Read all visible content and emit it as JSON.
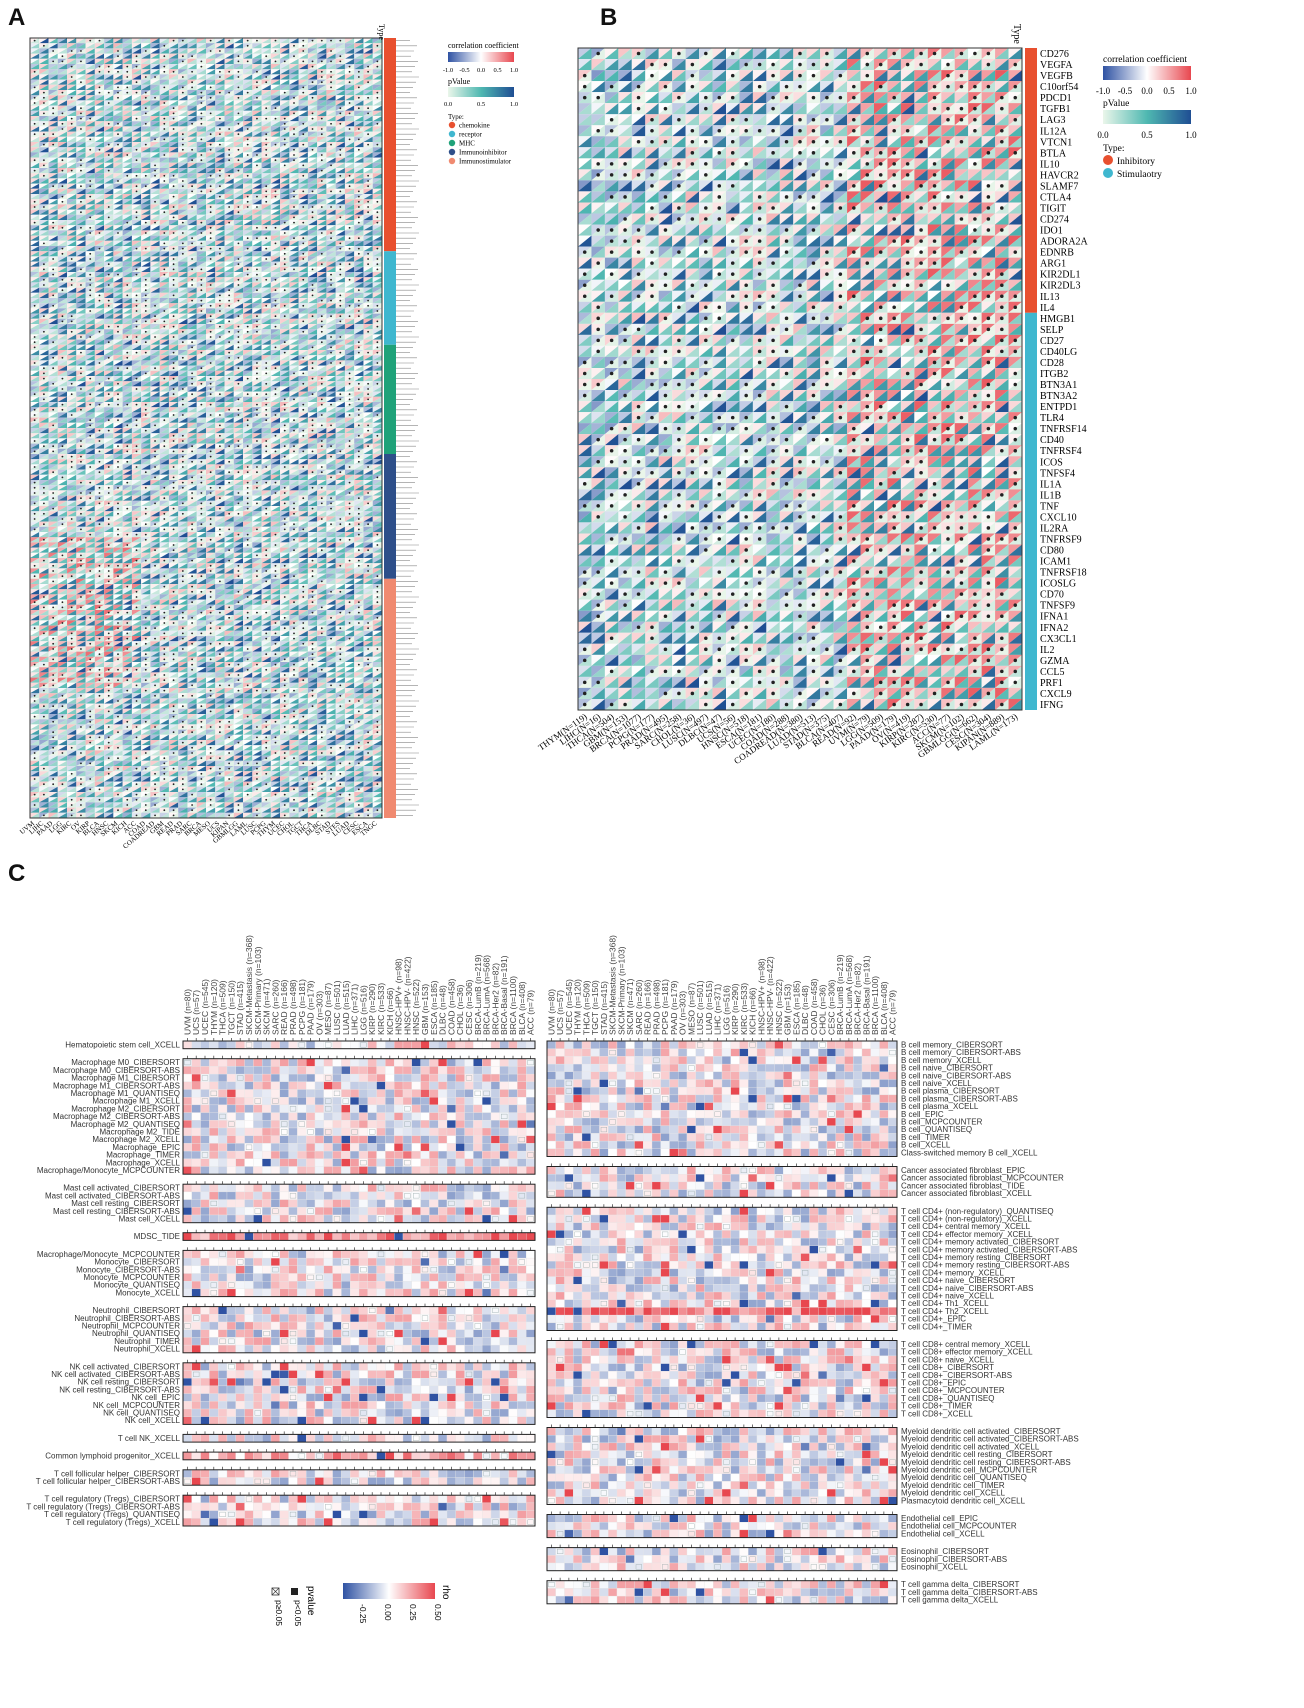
{
  "panels": {
    "a": {
      "letter": "A"
    },
    "b": {
      "letter": "B"
    },
    "c": {
      "letter": "C"
    }
  },
  "colors": {
    "negative": "#2f52a3",
    "positive": "#e8474f",
    "pvalue_low": "#eaf6ea",
    "pvalue_mid": "#4fb8b1",
    "pvalue_high": "#1f4e93",
    "chemokine": "#e8502f",
    "receptor": "#3fb7cf",
    "mhc": "#1fa279",
    "immunoinhibitor": "#2e4f8a",
    "immunostimulator": "#f08a70",
    "inhibitory": "#e8502f",
    "stimulaotry": "#3fb7cf"
  },
  "chart_data": [
    {
      "panel": "A",
      "type": "heatmap",
      "type_annotation_title": "Type",
      "legend": {
        "corr_title": "correlation coefficient",
        "corr_ticks": [
          "-1.0",
          "-0.5",
          "0.0",
          "0.5",
          "1.0"
        ],
        "p_title": "pValue",
        "p_ticks": [
          "0.0",
          "0.5",
          "1.0"
        ],
        "type_title": "Type",
        "types": [
          "chemokine",
          "receptor",
          "MHC",
          "Immunoinhibitor",
          "Immunostimulator"
        ]
      },
      "x_categories": [
        "UVM",
        "LIHC",
        "PAAD",
        "LGG",
        "KIRC",
        "OV",
        "KIRP",
        "BLCA",
        "HNSC",
        "SKCM",
        "KICH",
        "ACC",
        "COAD",
        "COADREAD",
        "GBM",
        "READ",
        "PRAD",
        "SARC",
        "BRCA",
        "MESO",
        "UCS",
        "KIPAN",
        "GBMLGG",
        "LAML",
        "LUSC",
        "PCPG",
        "THYM",
        "UCEC",
        "CHOL",
        "TGCT",
        "THCA",
        "DLBC",
        "STAD",
        "STES",
        "LUAD",
        "CESC",
        "ESCA",
        "TNGC"
      ],
      "y_groups": [
        {
          "type": "chemokine",
          "rows": 41
        },
        {
          "type": "receptor",
          "rows": 18
        },
        {
          "type": "MHC",
          "rows": 21
        },
        {
          "type": "Immunoinhibitor",
          "rows": 24
        },
        {
          "type": "Immunostimulator",
          "rows": 46
        }
      ]
    },
    {
      "panel": "B",
      "type": "heatmap",
      "type_annotation_title": "Type",
      "legend": {
        "corr_title": "correlation coefficient",
        "corr_ticks": [
          "-1.0",
          "-0.5",
          "0.0",
          "0.5",
          "1.0"
        ],
        "p_title": "pValue",
        "p_ticks": [
          "0.0",
          "0.5",
          "1.0"
        ],
        "type_title": "Type:",
        "types": [
          "Inhibitory",
          "Stimulaotry"
        ]
      },
      "x_categories": [
        "THYM(N=119)",
        "LIHC(N=16)",
        "THCA(N=504)",
        "GBM(N=153)",
        "BRCA(N=1077)",
        "PCPG(N=177)",
        "PRAD(N=495)",
        "SARC(N=258)",
        "CHOL(N=36)",
        "LUSC(N=497)",
        "DLBC(N=47)",
        "UCS(N=56)",
        "HNSC(N=518)",
        "ESCA(N=181)",
        "UCEC(N=180)",
        "COAD(N=288)",
        "COADREAD(N=380)",
        "LUAD(N=513)",
        "STAD(N=375)",
        "BLCA(N=407)",
        "READ(N=92)",
        "UVM(N=79)",
        "LGG(N=509)",
        "PAAD(N=179)",
        "OV(N=419)",
        "KIRP(N=287)",
        "KIRC(N=530)",
        "ACC(N=77)",
        "SKCM(N=102)",
        "GBMLGG(N=662)",
        "CESC(N=304)",
        "KIPAN(N=889)",
        "LAML(N=173)"
      ],
      "y_categories": [
        "CD276",
        "VEGFA",
        "VEGFB",
        "C10orf54",
        "PDCD1",
        "TGFB1",
        "LAG3",
        "IL12A",
        "VTCN1",
        "BTLA",
        "IL10",
        "HAVCR2",
        "SLAMF7",
        "CTLA4",
        "TIGIT",
        "CD274",
        "IDO1",
        "ADORA2A",
        "EDNRB",
        "ARG1",
        "KIR2DL1",
        "KIR2DL3",
        "IL13",
        "IL4",
        "HMGB1",
        "SELP",
        "CD27",
        "CD40LG",
        "CD28",
        "ITGB2",
        "BTN3A1",
        "BTN3A2",
        "ENTPD1",
        "TLR4",
        "TNFRSF14",
        "CD40",
        "TNFRSF4",
        "ICOS",
        "TNFSF4",
        "IL1A",
        "IL1B",
        "TNF",
        "CXCL10",
        "IL2RA",
        "TNFRSF9",
        "CD80",
        "ICAM1",
        "TNFRSF18",
        "ICOSLG",
        "CD70",
        "TNFSF9",
        "IFNA1",
        "IFNA2",
        "CX3CL1",
        "IL2",
        "GZMA",
        "CCL5",
        "PRF1",
        "CXCL9",
        "IFNG"
      ],
      "y_types": {
        "Inhibitory": 24,
        "Stimulaotry": 36
      }
    },
    {
      "panel": "C",
      "type": "heatmap",
      "x_categories": [
        "ACC (n=79)",
        "BLCA (n=408)",
        "BRCA (n=1100)",
        "BRCA-Basal (n=191)",
        "BRCA-Her2 (n=82)",
        "BRCA-LumA (n=568)",
        "BRCA-LumB (n=219)",
        "CESC (n=306)",
        "CHOL (n=36)",
        "COAD (n=458)",
        "DLBC (n=48)",
        "ESCA (n=185)",
        "GBM (n=153)",
        "HNSC (n=522)",
        "HNSC-HPV- (n=422)",
        "HNSC-HPV+ (n=98)",
        "KICH (n=66)",
        "KIRC (n=533)",
        "KIRP (n=290)",
        "LGG (n=516)",
        "LIHC (n=371)",
        "LUAD (n=515)",
        "LUSC (n=501)",
        "MESO (n=87)",
        "OV (n=303)",
        "PAAD (n=179)",
        "PCPG (n=181)",
        "PRAD (n=498)",
        "READ (n=166)",
        "SARC (n=260)",
        "SKCM (n=471)",
        "SKCM-Primary (n=103)",
        "SKCM-Metastasis (n=368)",
        "STAD (n=415)",
        "TGCT (n=150)",
        "THCA (n=509)",
        "THYM (n=120)",
        "UCEC (n=545)",
        "UCS (n=57)",
        "UVM (n=80)"
      ],
      "left_groups": [
        [
          "Hematopoietic stem cell_XCELL"
        ],
        [
          "Macrophage M0_CIBERSORT",
          "Macrophage M0_CIBERSORT-ABS",
          "Macrophage M1_CIBERSORT",
          "Macrophage M1_CIBERSORT-ABS",
          "Macrophage M1_QUANTISEQ",
          "Macrophage M1_XCELL",
          "Macrophage M2_CIBERSORT",
          "Macrophage M2_CIBERSORT-ABS",
          "Macrophage M2_QUANTISEQ",
          "Macrophage M2_TIDE",
          "Macrophage M2_XCELL",
          "Macrophage_EPIC",
          "Macrophage_TIMER",
          "Macrophage_XCELL",
          "Macrophage/Monocyte_MCPCOUNTER"
        ],
        [
          "Mast cell activated_CIBERSORT",
          "Mast cell activated_CIBERSORT-ABS",
          "Mast cell resting_CIBERSORT",
          "Mast cell resting_CIBERSORT-ABS",
          "Mast cell_XCELL"
        ],
        [
          "MDSC_TIDE"
        ],
        [
          "Macrophage/Monocyte_MCPCOUNTER",
          "Monocyte_CIBERSORT",
          "Monocyte_CIBERSORT-ABS",
          "Monocyte_MCPCOUNTER",
          "Monocyte_QUANTISEQ",
          "Monocyte_XCELL"
        ],
        [
          "Neutrophil_CIBERSORT",
          "Neutrophil_CIBERSORT-ABS",
          "Neutrophil_MCPCOUNTER",
          "Neutrophil_QUANTISEQ",
          "Neutrophil_TIMER",
          "Neutrophil_XCELL"
        ],
        [
          "NK cell activated_CIBERSORT",
          "NK cell activated_CIBERSORT-ABS",
          "NK cell resting_CIBERSORT",
          "NK cell resting_CIBERSORT-ABS",
          "NK cell_EPIC",
          "NK cell_MCPCOUNTER",
          "NK cell_QUANTISEQ",
          "NK cell_XCELL"
        ],
        [
          "T cell NK_XCELL"
        ],
        [
          "Common lymphoid progenitor_XCELL"
        ],
        [
          "T cell follicular helper_CIBERSORT",
          "T cell follicular helper_CIBERSORT-ABS"
        ],
        [
          "T cell regulatory (Tregs)_CIBERSORT",
          "T cell regulatory (Tregs)_CIBERSORT-ABS",
          "T cell regulatory (Tregs)_QUANTISEQ",
          "T cell regulatory (Tregs)_XCELL"
        ]
      ],
      "right_groups": [
        [
          "B cell memory_CIBERSORT",
          "B cell memory_CIBERSORT-ABS",
          "B cell memory_XCELL",
          "B cell naive_CIBERSORT",
          "B cell naive_CIBERSORT-ABS",
          "B cell naive_XCELL",
          "B cell plasma_CIBERSORT",
          "B cell plasma_CIBERSORT-ABS",
          "B cell plasma_XCELL",
          "B cell_EPIC",
          "B cell_MCPCOUNTER",
          "B cell_QUANTISEQ",
          "B cell_TIMER",
          "B cell_XCELL",
          "Class-switched memory B cell_XCELL"
        ],
        [
          "Cancer associated fibroblast_EPIC",
          "Cancer associated fibroblast_MCPCOUNTER",
          "Cancer associated fibroblast_TIDE",
          "Cancer associated fibroblast_XCELL"
        ],
        [
          "T cell CD4+ (non-regulatory)_QUANTISEQ",
          "T cell CD4+ (non-regulatory)_XCELL",
          "T cell CD4+ central memory_XCELL",
          "T cell CD4+ effector memory_XCELL",
          "T cell CD4+ memory activated_CIBERSORT",
          "T cell CD4+ memory activated_CIBERSORT-ABS",
          "T cell CD4+ memory resting_CIBERSORT",
          "T cell CD4+ memory resting_CIBERSORT-ABS",
          "T cell CD4+ memory_XCELL",
          "T cell CD4+ naive_CIBERSORT",
          "T cell CD4+ naive_CIBERSORT-ABS",
          "T cell CD4+ naive_XCELL",
          "T cell CD4+ Th1_XCELL",
          "T cell CD4+ Th2_XCELL",
          "T cell CD4+_EPIC",
          "T cell CD4+_TIMER"
        ],
        [
          "T cell CD8+ central memory_XCELL",
          "T cell CD8+ effector memory_XCELL",
          "T cell CD8+ naive_XCELL",
          "T cell CD8+_CIBERSORT",
          "T cell CD8+_CIBERSORT-ABS",
          "T cell CD8+_EPIC",
          "T cell CD8+_MCPCOUNTER",
          "T cell CD8+_QUANTISEQ",
          "T cell CD8+_TIMER",
          "T cell CD8+_XCELL"
        ],
        [
          "Myeloid dendritic cell activated_CIBERSORT",
          "Myeloid dendritic cell activated_CIBERSORT-ABS",
          "Myeloid dendritic cell activated_XCELL",
          "Myeloid dendritic cell resting_CIBERSORT",
          "Myeloid dendritic cell resting_CIBERSORT-ABS",
          "Myeloid dendritic cell_MCPCOUNTER",
          "Myeloid dendritic cell_QUANTISEQ",
          "Myeloid dendritic cell_TIMER",
          "Myeloid dendritic cell_XCELL",
          "Plasmacytoid dendritic cell_XCELL"
        ],
        [
          "Endothelial cell_EPIC",
          "Endothelial cell_MCPCOUNTER",
          "Endothelial cell_XCELL"
        ],
        [
          "Eosinophil_CIBERSORT",
          "Eosinophil_CIBERSORT-ABS",
          "Eosinophil_XCELL"
        ],
        [
          "T cell gamma delta_CIBERSORT",
          "T cell gamma delta_CIBERSORT-ABS",
          "T cell gamma delta_XCELL"
        ]
      ],
      "legend": {
        "pvalue_title": "pvalue",
        "pvalue_items": [
          "p<0.05",
          "p≥0.05"
        ],
        "rho_title": "rho",
        "rho_ticks": [
          "-0.25",
          "0.00",
          "0.25",
          "0.50"
        ]
      }
    }
  ]
}
